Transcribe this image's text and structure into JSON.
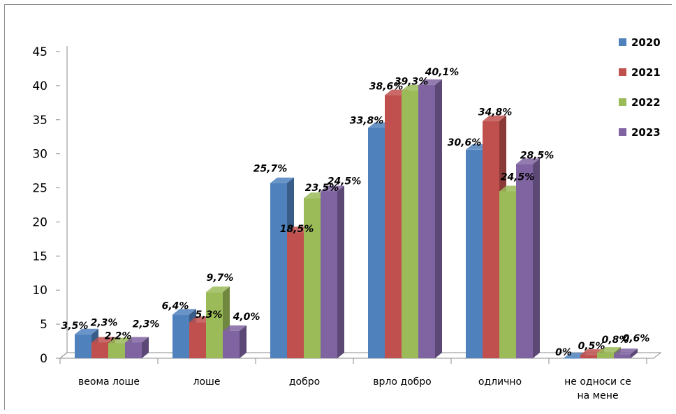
{
  "chart_data": {
    "type": "bar",
    "categories": [
      "веома лоше",
      "лоше",
      "добро",
      "врло добро",
      "одлично",
      "не односи се на мене"
    ],
    "category_lines": [
      [
        "веома лоше"
      ],
      [
        "лоше"
      ],
      [
        "добро"
      ],
      [
        "врло добро"
      ],
      [
        "одлично"
      ],
      [
        "не односи се",
        "на мене"
      ]
    ],
    "ylim": [
      0,
      45
    ],
    "yticks": [
      "0",
      "5",
      "10",
      "15",
      "20",
      "25",
      "30",
      "35",
      "40",
      "45"
    ],
    "grid": false,
    "legend_position": "top-right",
    "series": [
      {
        "name": "2020",
        "color": "#4f81bd",
        "values": [
          3.5,
          6.4,
          25.7,
          33.8,
          30.6,
          0
        ],
        "labels": [
          "3,5%",
          "6,4%",
          "25,7%",
          "33,8%",
          "30,6%",
          "0%"
        ]
      },
      {
        "name": "2021",
        "color": "#c0504d",
        "values": [
          2.3,
          5.3,
          18.5,
          38.6,
          34.8,
          0.5
        ],
        "labels": [
          "2,3%",
          "5,3%",
          "18,5%",
          "38,6%",
          "34,8%",
          "0,5%"
        ]
      },
      {
        "name": "2022",
        "color": "#9bbb59",
        "values": [
          2.2,
          9.7,
          23.5,
          39.3,
          24.5,
          0.8
        ],
        "labels": [
          "2,2%",
          "9,7%",
          "23,5%",
          "39,3%",
          "24,5%",
          "0,8%"
        ]
      },
      {
        "name": "2023",
        "color": "#8064a2",
        "values": [
          2.3,
          4.0,
          24.5,
          40.1,
          28.5,
          0.6
        ],
        "labels": [
          "2,3%",
          "4,0%",
          "24,5%",
          "40,1%",
          "28,5%",
          "0,6%"
        ]
      }
    ]
  }
}
